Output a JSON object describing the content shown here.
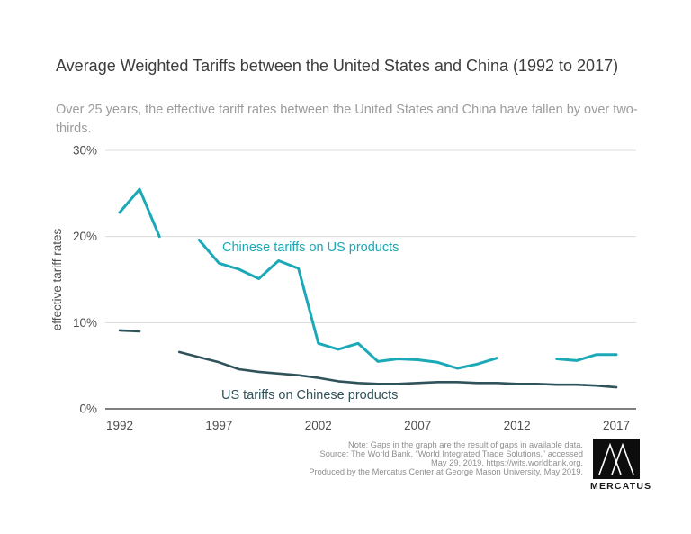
{
  "chart_data": {
    "type": "line",
    "title": "Average Weighted Tariffs between the United States and China (1992 to 2017)",
    "subtitle": "Over 25 years, the effective tariff rates between the United States and China have fallen by over two-thirds.",
    "ylabel": "effective tariff rates",
    "xlabel": "",
    "ylim": [
      0,
      30
    ],
    "grid": true,
    "legend_position": "inline-labels",
    "yticks": [
      {
        "value": 30,
        "label": "30%"
      },
      {
        "value": 20,
        "label": "20%"
      },
      {
        "value": 10,
        "label": "10%"
      },
      {
        "value": 0,
        "label": "0%"
      }
    ],
    "xticks": [
      1992,
      1997,
      2002,
      2007,
      2012,
      2017
    ],
    "x": [
      1992,
      1993,
      1994,
      1995,
      1996,
      1997,
      1998,
      1999,
      2000,
      2001,
      2002,
      2003,
      2004,
      2005,
      2006,
      2007,
      2008,
      2009,
      2010,
      2011,
      2012,
      2013,
      2014,
      2015,
      2016,
      2017
    ],
    "series": [
      {
        "name": "Chinese tariffs on US products",
        "color": "#1ba9b7",
        "values": [
          22.8,
          25.5,
          20.0,
          null,
          19.6,
          16.9,
          16.2,
          15.1,
          17.2,
          16.3,
          7.6,
          6.9,
          7.6,
          5.5,
          5.8,
          5.7,
          5.4,
          4.7,
          5.2,
          5.9,
          null,
          null,
          5.8,
          5.6,
          6.3,
          6.3
        ]
      },
      {
        "name": "US tariffs on Chinese products",
        "color": "#30535b",
        "values": [
          9.1,
          9.0,
          null,
          6.6,
          6.0,
          5.4,
          4.6,
          4.3,
          4.1,
          3.9,
          3.6,
          3.2,
          3.0,
          2.9,
          2.9,
          3.0,
          3.1,
          3.1,
          3.0,
          3.0,
          2.9,
          2.9,
          2.8,
          2.8,
          2.7,
          2.5
        ]
      }
    ]
  },
  "footer": {
    "lines": [
      "Note: Gaps in the graph are the result of gaps in available data.",
      "Source: The World Bank, “World Integrated Trade Solutions,” accessed",
      "May 29, 2019, https://wits.worldbank.org.",
      "Produced by the Mercatus Center at George Mason University, May 2019."
    ],
    "brand": "MERCATUS"
  },
  "colors": {
    "gridline": "#dcdcdc",
    "axis_line": "#7f7f7f",
    "title_text": "#3d3d3d",
    "subtitle_text": "#9c9c9c",
    "tick_text": "#4e4e4e",
    "footer_text": "#8f8f8f",
    "logo_background": "#0d0d0d"
  }
}
